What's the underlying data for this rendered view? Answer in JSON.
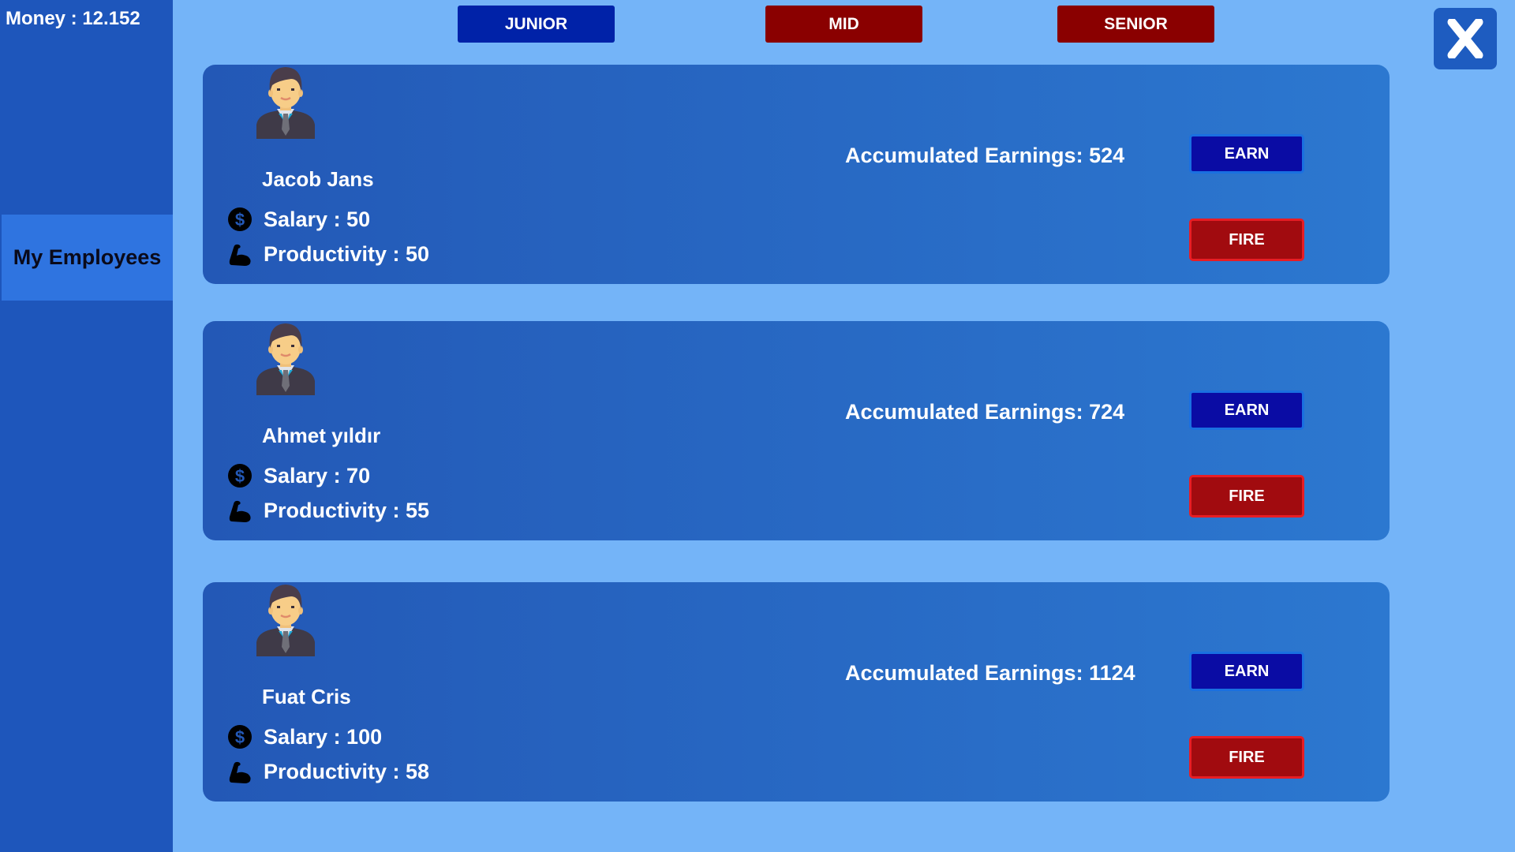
{
  "sidebar": {
    "money": "Money : 12.152",
    "tab": "My Employees"
  },
  "tiers": [
    {
      "label": "JUNIOR",
      "color": "#0022a8"
    },
    {
      "label": "MID",
      "color": "#8a0000"
    },
    {
      "label": "SENIOR",
      "color": "#8a0000"
    }
  ],
  "close_icon": "close-x-icon",
  "employees": [
    {
      "name": "Jacob Jans",
      "salary": "Salary : 50",
      "productivity": "Productivity : 50",
      "earnings": "Accumulated Earnings: 524",
      "earn": "EARN",
      "fire": "FIRE"
    },
    {
      "name": "Ahmet yıldır",
      "salary": "Salary : 70",
      "productivity": "Productivity : 55",
      "earnings": "Accumulated Earnings: 724",
      "earn": "EARN",
      "fire": "FIRE"
    },
    {
      "name": "Fuat Cris",
      "salary": "Salary : 100",
      "productivity": "Productivity : 58",
      "earnings": "Accumulated Earnings: 1124",
      "earn": "EARN",
      "fire": "FIRE"
    }
  ]
}
